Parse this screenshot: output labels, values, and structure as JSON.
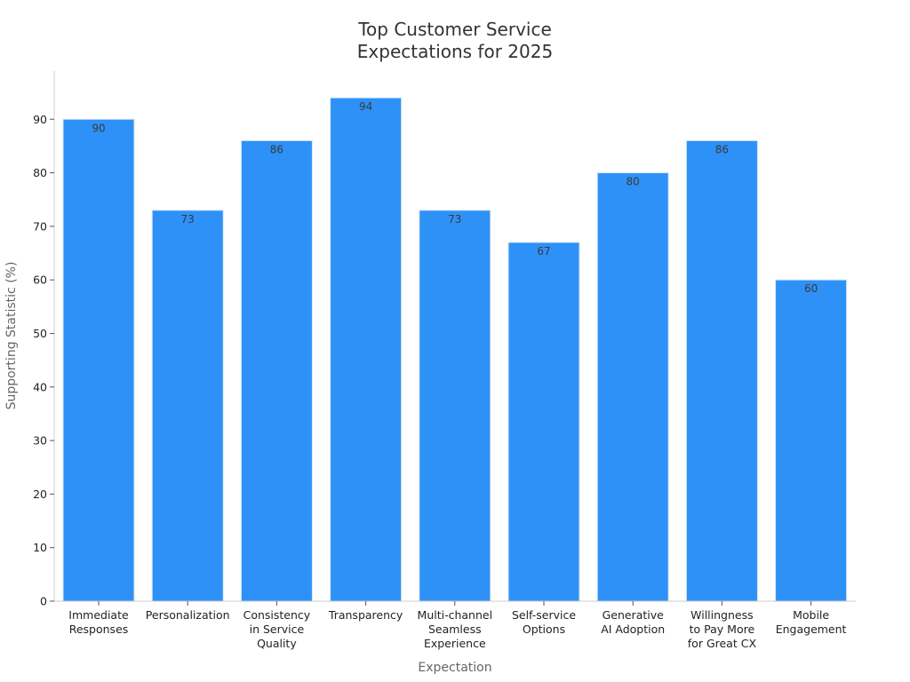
{
  "chart_data": {
    "type": "bar",
    "title": [
      "Top Customer Service",
      "Expectations for 2025"
    ],
    "xlabel": "Expectation",
    "ylabel": "Supporting Statistic (%)",
    "ylim": [
      0,
      99
    ],
    "yticks": [
      0,
      10,
      20,
      30,
      40,
      50,
      60,
      70,
      80,
      90
    ],
    "bar_color": "#2e91f7",
    "bar_edge_color": "#d6e6f5",
    "categories": [
      [
        "Immediate",
        "Responses"
      ],
      [
        "Personalization"
      ],
      [
        "Consistency",
        "in Service",
        "Quality"
      ],
      [
        "Transparency"
      ],
      [
        "Multi-channel",
        "Seamless",
        "Experience"
      ],
      [
        "Self-service",
        "Options"
      ],
      [
        "Generative",
        "AI Adoption"
      ],
      [
        "Willingness",
        "to Pay More",
        "for Great CX"
      ],
      [
        "Mobile",
        "Engagement"
      ]
    ],
    "values": [
      90,
      73,
      86,
      94,
      73,
      67,
      80,
      86,
      60
    ],
    "grid": false
  }
}
